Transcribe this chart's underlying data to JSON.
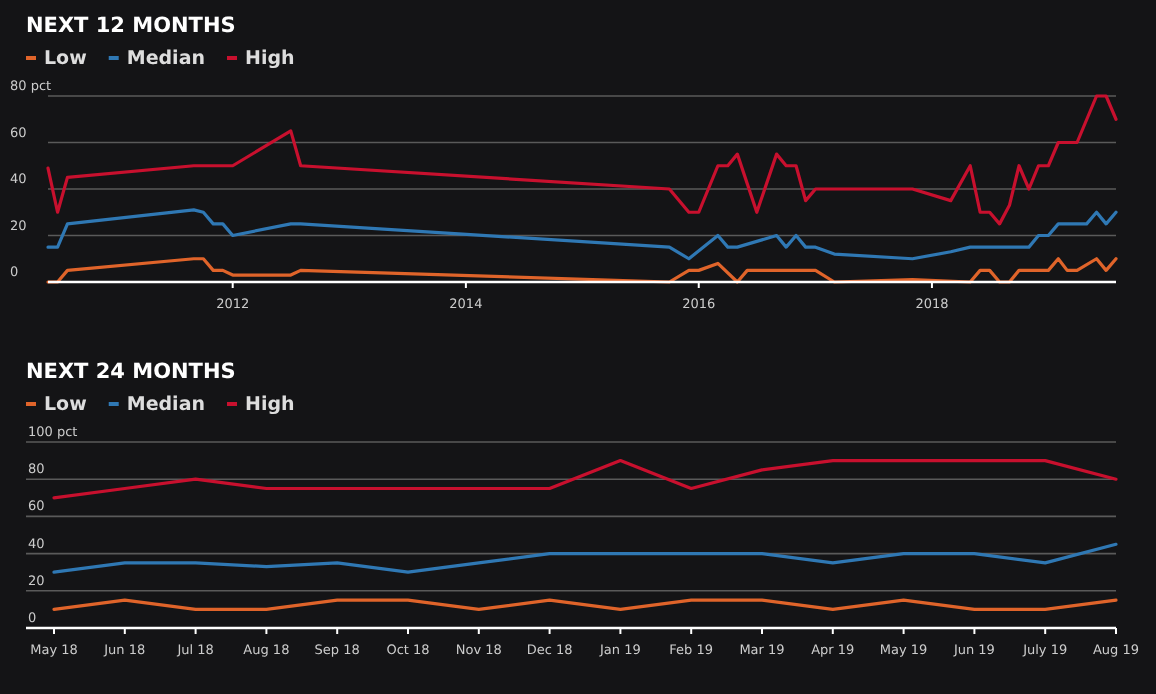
{
  "chart_data": [
    {
      "type": "line",
      "title": "NEXT 12 MONTHS",
      "legend": "top left",
      "grid": "y",
      "xlim": [
        "2010-06",
        "2019-08"
      ],
      "xticks": [
        "2012",
        "2014",
        "2016",
        "2018"
      ],
      "ylim": [
        0,
        80
      ],
      "yticks": [
        0,
        20,
        40,
        60,
        {
          "value": 80,
          "label": "80 pct"
        }
      ],
      "series": [
        {
          "name": "Low",
          "color": "#e0642a",
          "x": [
            "2010-06",
            "2010-07",
            "2010-08",
            "2011-09",
            "2011-10",
            "2011-11",
            "2011-12",
            "2012-01",
            "2012-07",
            "2012-08",
            "2015-10",
            "2015-12",
            "2016-01",
            "2016-03",
            "2016-05",
            "2016-06",
            "2017-01",
            "2017-03",
            "2017-11",
            "2018-05",
            "2018-06",
            "2018-07",
            "2018-08",
            "2018-09",
            "2018-10",
            "2019-01",
            "2019-02",
            "2019-03",
            "2019-04",
            "2019-06",
            "2019-07",
            "2019-08"
          ],
          "values": [
            0,
            0,
            5,
            10,
            10,
            5,
            5,
            3,
            3,
            5,
            0,
            5,
            5,
            8,
            0,
            5,
            5,
            0,
            1,
            0,
            5,
            5,
            0,
            0,
            5,
            5,
            10,
            5,
            5,
            10,
            5,
            10
          ]
        },
        {
          "name": "Median",
          "color": "#2f78b4",
          "x": [
            "2010-06",
            "2010-07",
            "2010-08",
            "2011-09",
            "2011-10",
            "2011-11",
            "2011-12",
            "2012-01",
            "2012-07",
            "2012-08",
            "2015-10",
            "2015-12",
            "2016-03",
            "2016-04",
            "2016-05",
            "2016-09",
            "2016-10",
            "2016-11",
            "2016-12",
            "2017-01",
            "2017-03",
            "2017-11",
            "2018-03",
            "2018-05",
            "2018-11",
            "2018-12",
            "2019-01",
            "2019-02",
            "2019-05",
            "2019-06",
            "2019-07",
            "2019-08"
          ],
          "values": [
            15,
            15,
            25,
            31,
            30,
            25,
            25,
            20,
            25,
            25,
            15,
            10,
            20,
            15,
            15,
            20,
            15,
            20,
            15,
            15,
            12,
            10,
            13,
            15,
            15,
            20,
            20,
            25,
            25,
            30,
            25,
            30
          ]
        },
        {
          "name": "High",
          "color": "#c8102e",
          "x": [
            "2010-06",
            "2010-07",
            "2010-08",
            "2011-09",
            "2012-01",
            "2012-07",
            "2012-08",
            "2015-10",
            "2015-12",
            "2016-01",
            "2016-03",
            "2016-04",
            "2016-05",
            "2016-07",
            "2016-09",
            "2016-10",
            "2016-11",
            "2016-12",
            "2017-01",
            "2017-11",
            "2018-03",
            "2018-05",
            "2018-06",
            "2018-07",
            "2018-08",
            "2018-09",
            "2018-10",
            "2018-11",
            "2018-12",
            "2019-01",
            "2019-02",
            "2019-04",
            "2019-06",
            "2019-07",
            "2019-08"
          ],
          "values": [
            49,
            30,
            45,
            50,
            50,
            65,
            50,
            40,
            30,
            30,
            50,
            50,
            55,
            30,
            55,
            50,
            50,
            35,
            40,
            40,
            35,
            50,
            30,
            30,
            25,
            33,
            50,
            40,
            50,
            50,
            60,
            60,
            80,
            80,
            70
          ]
        }
      ]
    },
    {
      "type": "line",
      "title": "NEXT 24 MONTHS",
      "legend": "top left",
      "grid": "y",
      "categories": [
        "May 18",
        "Jun 18",
        "Jul 18",
        "Aug 18",
        "Sep 18",
        "Oct 18",
        "Nov 18",
        "Dec 18",
        "Jan 19",
        "Feb 19",
        "Mar 19",
        "Apr 19",
        "May 19",
        "Jun 19",
        "July 19",
        "Aug 19"
      ],
      "ylim": [
        0,
        100
      ],
      "yticks": [
        0,
        20,
        40,
        60,
        80,
        {
          "value": 100,
          "label": "100 pct"
        }
      ],
      "series": [
        {
          "name": "Low",
          "color": "#e0642a",
          "values": [
            10,
            15,
            10,
            10,
            15,
            15,
            10,
            15,
            10,
            15,
            15,
            10,
            15,
            10,
            10,
            15
          ]
        },
        {
          "name": "Median",
          "color": "#2f78b4",
          "values": [
            30,
            35,
            35,
            33,
            35,
            30,
            35,
            40,
            40,
            40,
            40,
            35,
            40,
            40,
            35,
            45
          ]
        },
        {
          "name": "High",
          "color": "#c8102e",
          "values": [
            70,
            75,
            80,
            75,
            75,
            75,
            75,
            75,
            90,
            75,
            85,
            90,
            90,
            90,
            90,
            80
          ]
        }
      ]
    }
  ]
}
